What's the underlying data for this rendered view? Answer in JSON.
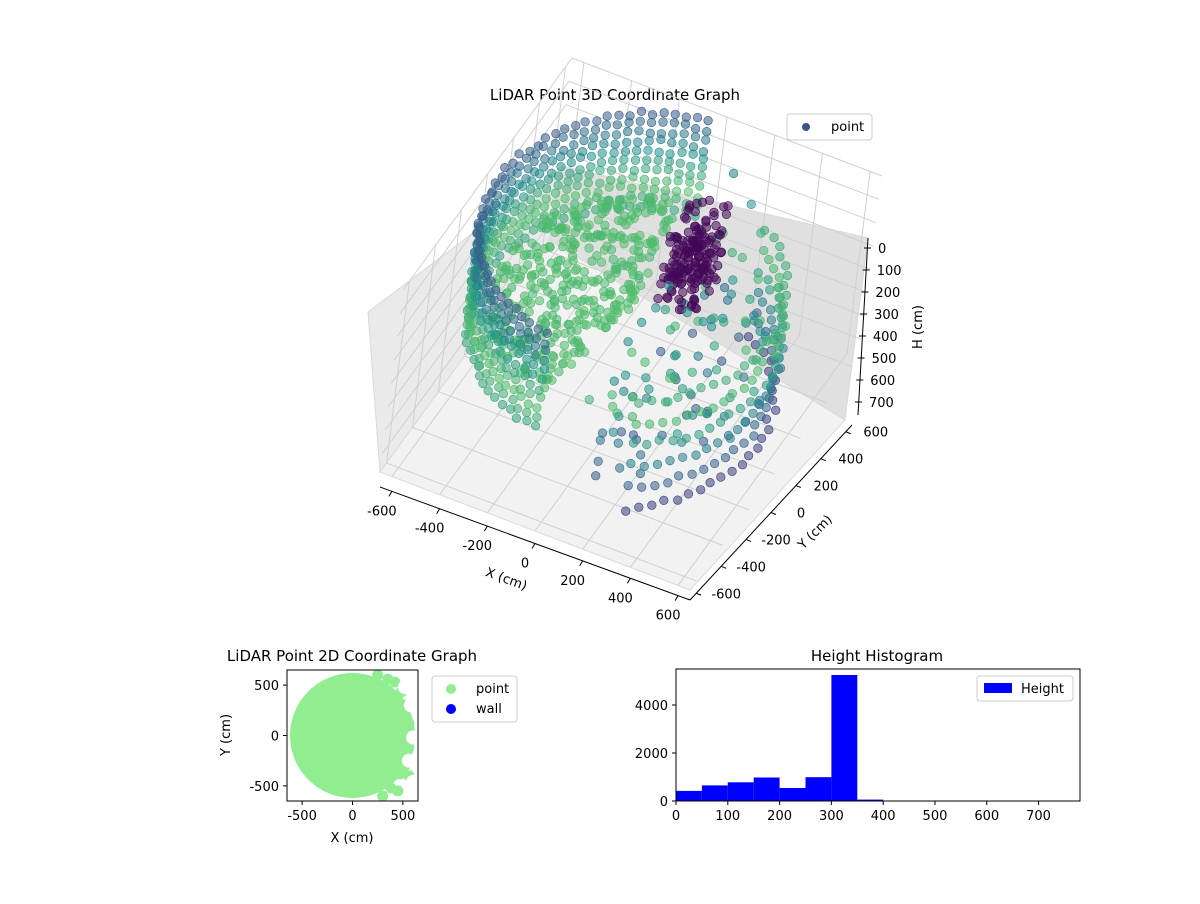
{
  "figure": {
    "bg": "#ffffff"
  },
  "chart_data": [
    {
      "type": "scatter",
      "projection": "3d",
      "title": "LiDAR Point 3D Coordinate Graph",
      "xlabel": "X (cm)",
      "ylabel": "Y (cm)",
      "zlabel": "H (cm)",
      "xlim": [
        -650,
        650
      ],
      "ylim": [
        -650,
        650
      ],
      "zlim": [
        780,
        0
      ],
      "zaxis_inverted": true,
      "x_ticks": [
        -600,
        -400,
        -200,
        0,
        200,
        400,
        600
      ],
      "y_ticks": [
        -600,
        -400,
        -200,
        0,
        200,
        400,
        600
      ],
      "z_ticks": [
        0,
        100,
        200,
        300,
        400,
        500,
        600,
        700
      ],
      "legend": {
        "entries": [
          "point"
        ],
        "placement": "upper-right",
        "marker_color": "#3b528b"
      },
      "colormap": "viridis",
      "grid": true,
      "clusters": [
        {
          "label": "outer wall ring (left arc)",
          "radius": 600,
          "angle_range_deg": [
            95,
            265
          ],
          "height_range": [
            0,
            400
          ]
        },
        {
          "label": "outer wall ring (right arc)",
          "radius": 560,
          "angle_range_deg": [
            -60,
            60
          ],
          "height_range": [
            250,
            700
          ]
        },
        {
          "label": "floor disc",
          "radius_range": [
            0,
            560
          ],
          "height": 300
        },
        {
          "label": "dense obstacle cluster",
          "center_x": 150,
          "center_y": 150,
          "height_range": [
            0,
            300
          ]
        }
      ]
    },
    {
      "type": "scatter",
      "title": "LiDAR Point 2D Coordinate Graph",
      "xlabel": "X (cm)",
      "ylabel": "Y (cm)",
      "xlim": [
        -650,
        650
      ],
      "ylim": [
        -650,
        650
      ],
      "x_ticks": [
        -500,
        0,
        500
      ],
      "y_ticks": [
        -500,
        0,
        500
      ],
      "series": [
        {
          "name": "point",
          "color": "#90ee90",
          "region": "disc radius 620 centered at origin, ragged right edge"
        },
        {
          "name": "wall",
          "color": "#0000ff",
          "region": "none visible"
        }
      ],
      "legend": {
        "placement": "outside-right"
      }
    },
    {
      "type": "bar",
      "subtype": "histogram",
      "title": "Height Histogram",
      "xlim": [
        0,
        780
      ],
      "ylim": [
        0,
        5500
      ],
      "x_ticks": [
        0,
        100,
        200,
        300,
        400,
        500,
        600,
        700
      ],
      "y_ticks": [
        0,
        2000,
        4000
      ],
      "bin_width": 50,
      "bins_start": [
        0,
        50,
        100,
        150,
        200,
        250,
        300,
        350
      ],
      "values": [
        420,
        650,
        780,
        980,
        540,
        990,
        5250,
        60
      ],
      "series": [
        {
          "name": "Height",
          "color": "#0000ff"
        }
      ],
      "legend": {
        "placement": "upper-right"
      }
    }
  ]
}
